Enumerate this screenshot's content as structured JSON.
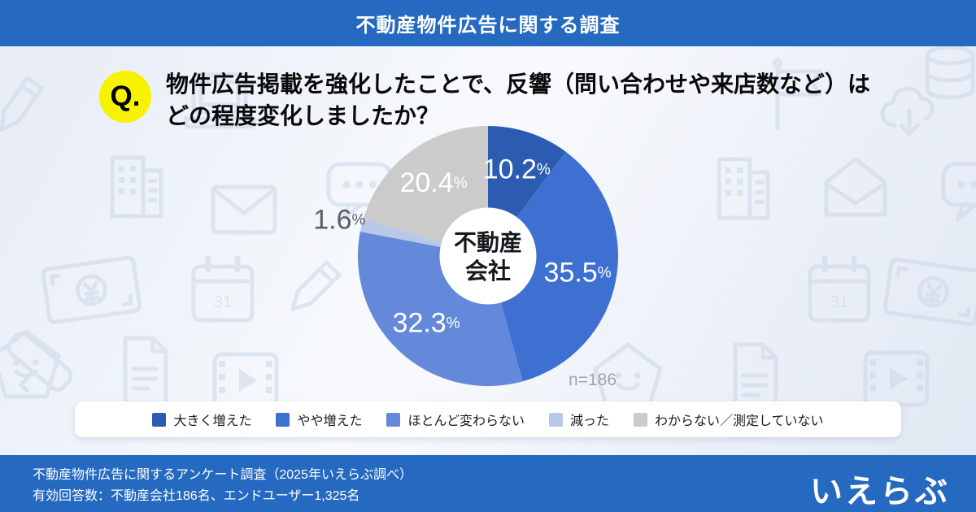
{
  "header": {
    "title": "不動産物件広告に関する調査"
  },
  "question": {
    "badge": "Q.",
    "line1": "物件広告掲載を強化したことで、反響（問い合わせや来店数など）は",
    "line2": "どの程度変化しましたか？"
  },
  "chart_data": {
    "type": "pie",
    "donut": true,
    "direction": "clockwise",
    "start_angle_deg": 0,
    "legend_position": "bottom",
    "center_label_line1": "不動産",
    "center_label_line2": "会社",
    "n_label": "n=186",
    "categories": [
      "大きく増えた",
      "やや増えた",
      "ほとんど変わらない",
      "減った",
      "わからない／測定していない"
    ],
    "values": [
      10.2,
      35.5,
      32.3,
      1.6,
      20.4
    ],
    "colors": [
      "#2c5cb2",
      "#3e70d1",
      "#6489da",
      "#b8c9e8",
      "#cbcbcb"
    ],
    "label_positions": [
      "inside",
      "inside",
      "inside",
      "outside",
      "inside"
    ],
    "label_colors": [
      "#ffffff",
      "#ffffff",
      "#ffffff",
      "#5a5f66",
      "#ffffff"
    ]
  },
  "background": {
    "calendar_day": "31"
  },
  "footer": {
    "line1": "不動産物件広告に関するアンケート調査（2025年いえらぶ調べ）",
    "line2": "有効回答数：不動産会社186名、エンドユーザー1,325名",
    "logo": "いえらぶ"
  },
  "colors": {
    "brand_blue": "#2569c0",
    "badge_yellow": "#f7f300"
  }
}
